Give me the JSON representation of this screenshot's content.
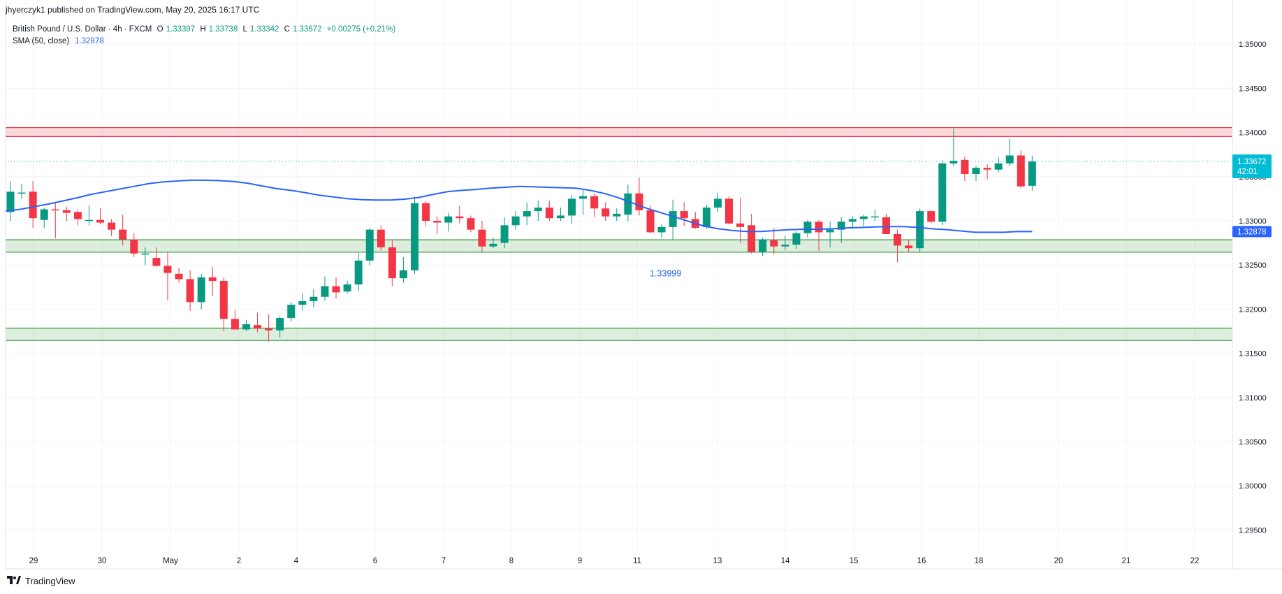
{
  "header": {
    "published": "jhyerczyk1 published on TradingView.com, May 20, 2025 16:17 UTC"
  },
  "legend": {
    "symbol": "British Pound / U.S. Dollar · 4h · FXCM",
    "open_label": "O",
    "open": "1.33397",
    "high_label": "H",
    "high": "1.33738",
    "low_label": "L",
    "low": "1.33342",
    "close_label": "C",
    "close": "1.33672",
    "change": "+0.00275 (+0.21%)",
    "sma_label": "SMA (50, close)",
    "sma_value": "1.32878"
  },
  "footer": {
    "brand": "TradingView",
    "logo_icon": "tradingview-logo-icon"
  },
  "colors": {
    "up": "#089981",
    "down": "#f23645",
    "sma": "#2962ff",
    "resistance": "#f23645",
    "support": "#43a047",
    "price_label_bg": "#00bcd4"
  },
  "chart_data": {
    "type": "candlestick",
    "timeframe": "4h",
    "y_ticks": [
      "1.35000",
      "1.34500",
      "1.34000",
      "1.33500",
      "1.33000",
      "1.32500",
      "1.32000",
      "1.31500",
      "1.31000",
      "1.30500",
      "1.30000",
      "1.29500"
    ],
    "y_range": [
      1.2925,
      1.355
    ],
    "x_ticks": [
      "29",
      "30",
      "May",
      "2",
      "4",
      "6",
      "7",
      "8",
      "9",
      "11",
      "13",
      "14",
      "15",
      "16",
      "18",
      "20",
      "21",
      "22"
    ],
    "last_price_label": "1.33672",
    "countdown_label": "42:01",
    "sma_price_label": "1.32878",
    "annotation_label": "1.33999",
    "zones": [
      {
        "kind": "resistance",
        "top": 1.34055,
        "bottom": 1.33955
      },
      {
        "kind": "support",
        "top": 1.32785,
        "bottom": 1.32645
      },
      {
        "kind": "support",
        "top": 1.31785,
        "bottom": 1.31645
      }
    ],
    "candles": [
      [
        1.331,
        1.3345,
        1.33,
        1.3333
      ],
      [
        1.3331,
        1.3342,
        1.3325,
        1.3332
      ],
      [
        1.3333,
        1.3345,
        1.3292,
        1.3303
      ],
      [
        1.3301,
        1.3315,
        1.3292,
        1.3313
      ],
      [
        1.3313,
        1.332,
        1.328,
        1.3312
      ],
      [
        1.3312,
        1.3316,
        1.33,
        1.3309
      ],
      [
        1.331,
        1.3313,
        1.3295,
        1.3302
      ],
      [
        1.3301,
        1.3318,
        1.3295,
        1.3301
      ],
      [
        1.3301,
        1.3314,
        1.3296,
        1.3298
      ],
      [
        1.3298,
        1.3302,
        1.3283,
        1.329
      ],
      [
        1.329,
        1.3307,
        1.3272,
        1.3279
      ],
      [
        1.3279,
        1.3286,
        1.3259,
        1.3263
      ],
      [
        1.3263,
        1.327,
        1.325,
        1.3263
      ],
      [
        1.3258,
        1.327,
        1.3248,
        1.3249
      ],
      [
        1.3249,
        1.3265,
        1.321,
        1.3241
      ],
      [
        1.324,
        1.3247,
        1.323,
        1.3234
      ],
      [
        1.3234,
        1.3244,
        1.3198,
        1.3208
      ],
      [
        1.3208,
        1.324,
        1.32,
        1.3236
      ],
      [
        1.3236,
        1.3248,
        1.3215,
        1.3232
      ],
      [
        1.3232,
        1.3236,
        1.3175,
        1.3189
      ],
      [
        1.3189,
        1.3199,
        1.318,
        1.3177
      ],
      [
        1.3177,
        1.3188,
        1.3175,
        1.3183
      ],
      [
        1.3182,
        1.3196,
        1.3174,
        1.3178
      ],
      [
        1.3178,
        1.3194,
        1.3163,
        1.3176
      ],
      [
        1.3176,
        1.3192,
        1.3168,
        1.319
      ],
      [
        1.319,
        1.3208,
        1.3186,
        1.3205
      ],
      [
        1.3205,
        1.3218,
        1.3199,
        1.3209
      ],
      [
        1.3209,
        1.3223,
        1.3202,
        1.3214
      ],
      [
        1.3214,
        1.3237,
        1.321,
        1.3226
      ],
      [
        1.3226,
        1.3236,
        1.3212,
        1.3219
      ],
      [
        1.322,
        1.3232,
        1.3218,
        1.3228
      ],
      [
        1.3228,
        1.3263,
        1.322,
        1.3255
      ],
      [
        1.3255,
        1.3292,
        1.325,
        1.329
      ],
      [
        1.329,
        1.3295,
        1.3266,
        1.327
      ],
      [
        1.327,
        1.3278,
        1.3226,
        1.3235
      ],
      [
        1.3235,
        1.3259,
        1.323,
        1.3244
      ],
      [
        1.3244,
        1.3327,
        1.324,
        1.332
      ],
      [
        1.332,
        1.3322,
        1.3294,
        1.33
      ],
      [
        1.33,
        1.3305,
        1.3285,
        1.3298
      ],
      [
        1.3298,
        1.3309,
        1.3288,
        1.3305
      ],
      [
        1.3305,
        1.3317,
        1.3297,
        1.3303
      ],
      [
        1.3303,
        1.3306,
        1.3287,
        1.329
      ],
      [
        1.329,
        1.33,
        1.3265,
        1.3271
      ],
      [
        1.3271,
        1.3281,
        1.3269,
        1.3274
      ],
      [
        1.3275,
        1.3304,
        1.3269,
        1.3295
      ],
      [
        1.3295,
        1.3311,
        1.329,
        1.3305
      ],
      [
        1.3305,
        1.3321,
        1.3295,
        1.3311
      ],
      [
        1.3311,
        1.3323,
        1.33,
        1.3315
      ],
      [
        1.3315,
        1.3323,
        1.33,
        1.3303
      ],
      [
        1.3303,
        1.3315,
        1.33,
        1.3306
      ],
      [
        1.3306,
        1.3329,
        1.3297,
        1.3325
      ],
      [
        1.3325,
        1.3335,
        1.3307,
        1.3328
      ],
      [
        1.3328,
        1.3331,
        1.3304,
        1.3314
      ],
      [
        1.3314,
        1.3321,
        1.33,
        1.3305
      ],
      [
        1.3305,
        1.3314,
        1.33,
        1.3308
      ],
      [
        1.3307,
        1.3341,
        1.33,
        1.3331
      ],
      [
        1.3331,
        1.3349,
        1.3306,
        1.3312
      ],
      [
        1.3312,
        1.3317,
        1.3286,
        1.3287
      ],
      [
        1.3287,
        1.3296,
        1.3281,
        1.3293
      ],
      [
        1.3293,
        1.3324,
        1.3279,
        1.3311
      ],
      [
        1.3311,
        1.3321,
        1.3294,
        1.3303
      ],
      [
        1.3302,
        1.331,
        1.3291,
        1.3292
      ],
      [
        1.3293,
        1.3318,
        1.3291,
        1.3315
      ],
      [
        1.3315,
        1.3332,
        1.331,
        1.3325
      ],
      [
        1.3325,
        1.3328,
        1.3296,
        1.3297
      ],
      [
        1.3297,
        1.3326,
        1.3275,
        1.3293
      ],
      [
        1.3295,
        1.3308,
        1.3263,
        1.3265
      ],
      [
        1.3265,
        1.3281,
        1.326,
        1.3279
      ],
      [
        1.3278,
        1.3292,
        1.3262,
        1.3271
      ],
      [
        1.3271,
        1.3283,
        1.3267,
        1.3273
      ],
      [
        1.3273,
        1.3288,
        1.3268,
        1.3286
      ],
      [
        1.3286,
        1.3301,
        1.3281,
        1.3299
      ],
      [
        1.3299,
        1.3301,
        1.3266,
        1.3287
      ],
      [
        1.3287,
        1.3299,
        1.327,
        1.329
      ],
      [
        1.329,
        1.3304,
        1.3275,
        1.3299
      ],
      [
        1.3299,
        1.3305,
        1.3292,
        1.3302
      ],
      [
        1.3302,
        1.3307,
        1.3294,
        1.3305
      ],
      [
        1.3305,
        1.3313,
        1.33,
        1.3305
      ],
      [
        1.3304,
        1.3308,
        1.3287,
        1.3285
      ],
      [
        1.3285,
        1.329,
        1.3253,
        1.3272
      ],
      [
        1.3272,
        1.3278,
        1.3264,
        1.3269
      ],
      [
        1.3269,
        1.3314,
        1.3265,
        1.3311
      ],
      [
        1.3311,
        1.3312,
        1.3297,
        1.3299
      ],
      [
        1.3299,
        1.3369,
        1.3295,
        1.3365
      ],
      [
        1.3365,
        1.3404,
        1.3362,
        1.3368
      ],
      [
        1.3369,
        1.3373,
        1.3345,
        1.3353
      ],
      [
        1.3353,
        1.3362,
        1.3345,
        1.336
      ],
      [
        1.336,
        1.3364,
        1.3347,
        1.3358
      ],
      [
        1.3358,
        1.3372,
        1.3355,
        1.3365
      ],
      [
        1.3365,
        1.3393,
        1.3362,
        1.3374
      ],
      [
        1.3374,
        1.338,
        1.3337,
        1.3339
      ],
      [
        1.33397,
        1.33738,
        1.33342,
        1.33672
      ]
    ],
    "sma": [
      1.3311,
      1.3313,
      1.3316,
      1.3319,
      1.33225,
      1.3326,
      1.333,
      1.3333,
      1.3336,
      1.3339,
      1.3342,
      1.3344,
      1.3345,
      1.3346,
      1.3346,
      1.33455,
      1.33445,
      1.33425,
      1.33395,
      1.33365,
      1.33345,
      1.3332,
      1.3329,
      1.3327,
      1.3325,
      1.3324,
      1.33235,
      1.33235,
      1.33245,
      1.33265,
      1.333,
      1.3333,
      1.33345,
      1.33355,
      1.3337,
      1.3338,
      1.3339,
      1.33385,
      1.3338,
      1.33375,
      1.3337,
      1.33345,
      1.3331,
      1.3326,
      1.332,
      1.3314,
      1.3309,
      1.3304,
      1.3299,
      1.3294,
      1.3291,
      1.3289,
      1.3288,
      1.3288,
      1.3289,
      1.329,
      1.32905,
      1.32905,
      1.3291,
      1.3292,
      1.32925,
      1.3293,
      1.32935,
      1.32935,
      1.32925,
      1.3291,
      1.329,
      1.32885,
      1.3287,
      1.3287,
      1.3287,
      1.3288,
      1.32878
    ]
  }
}
